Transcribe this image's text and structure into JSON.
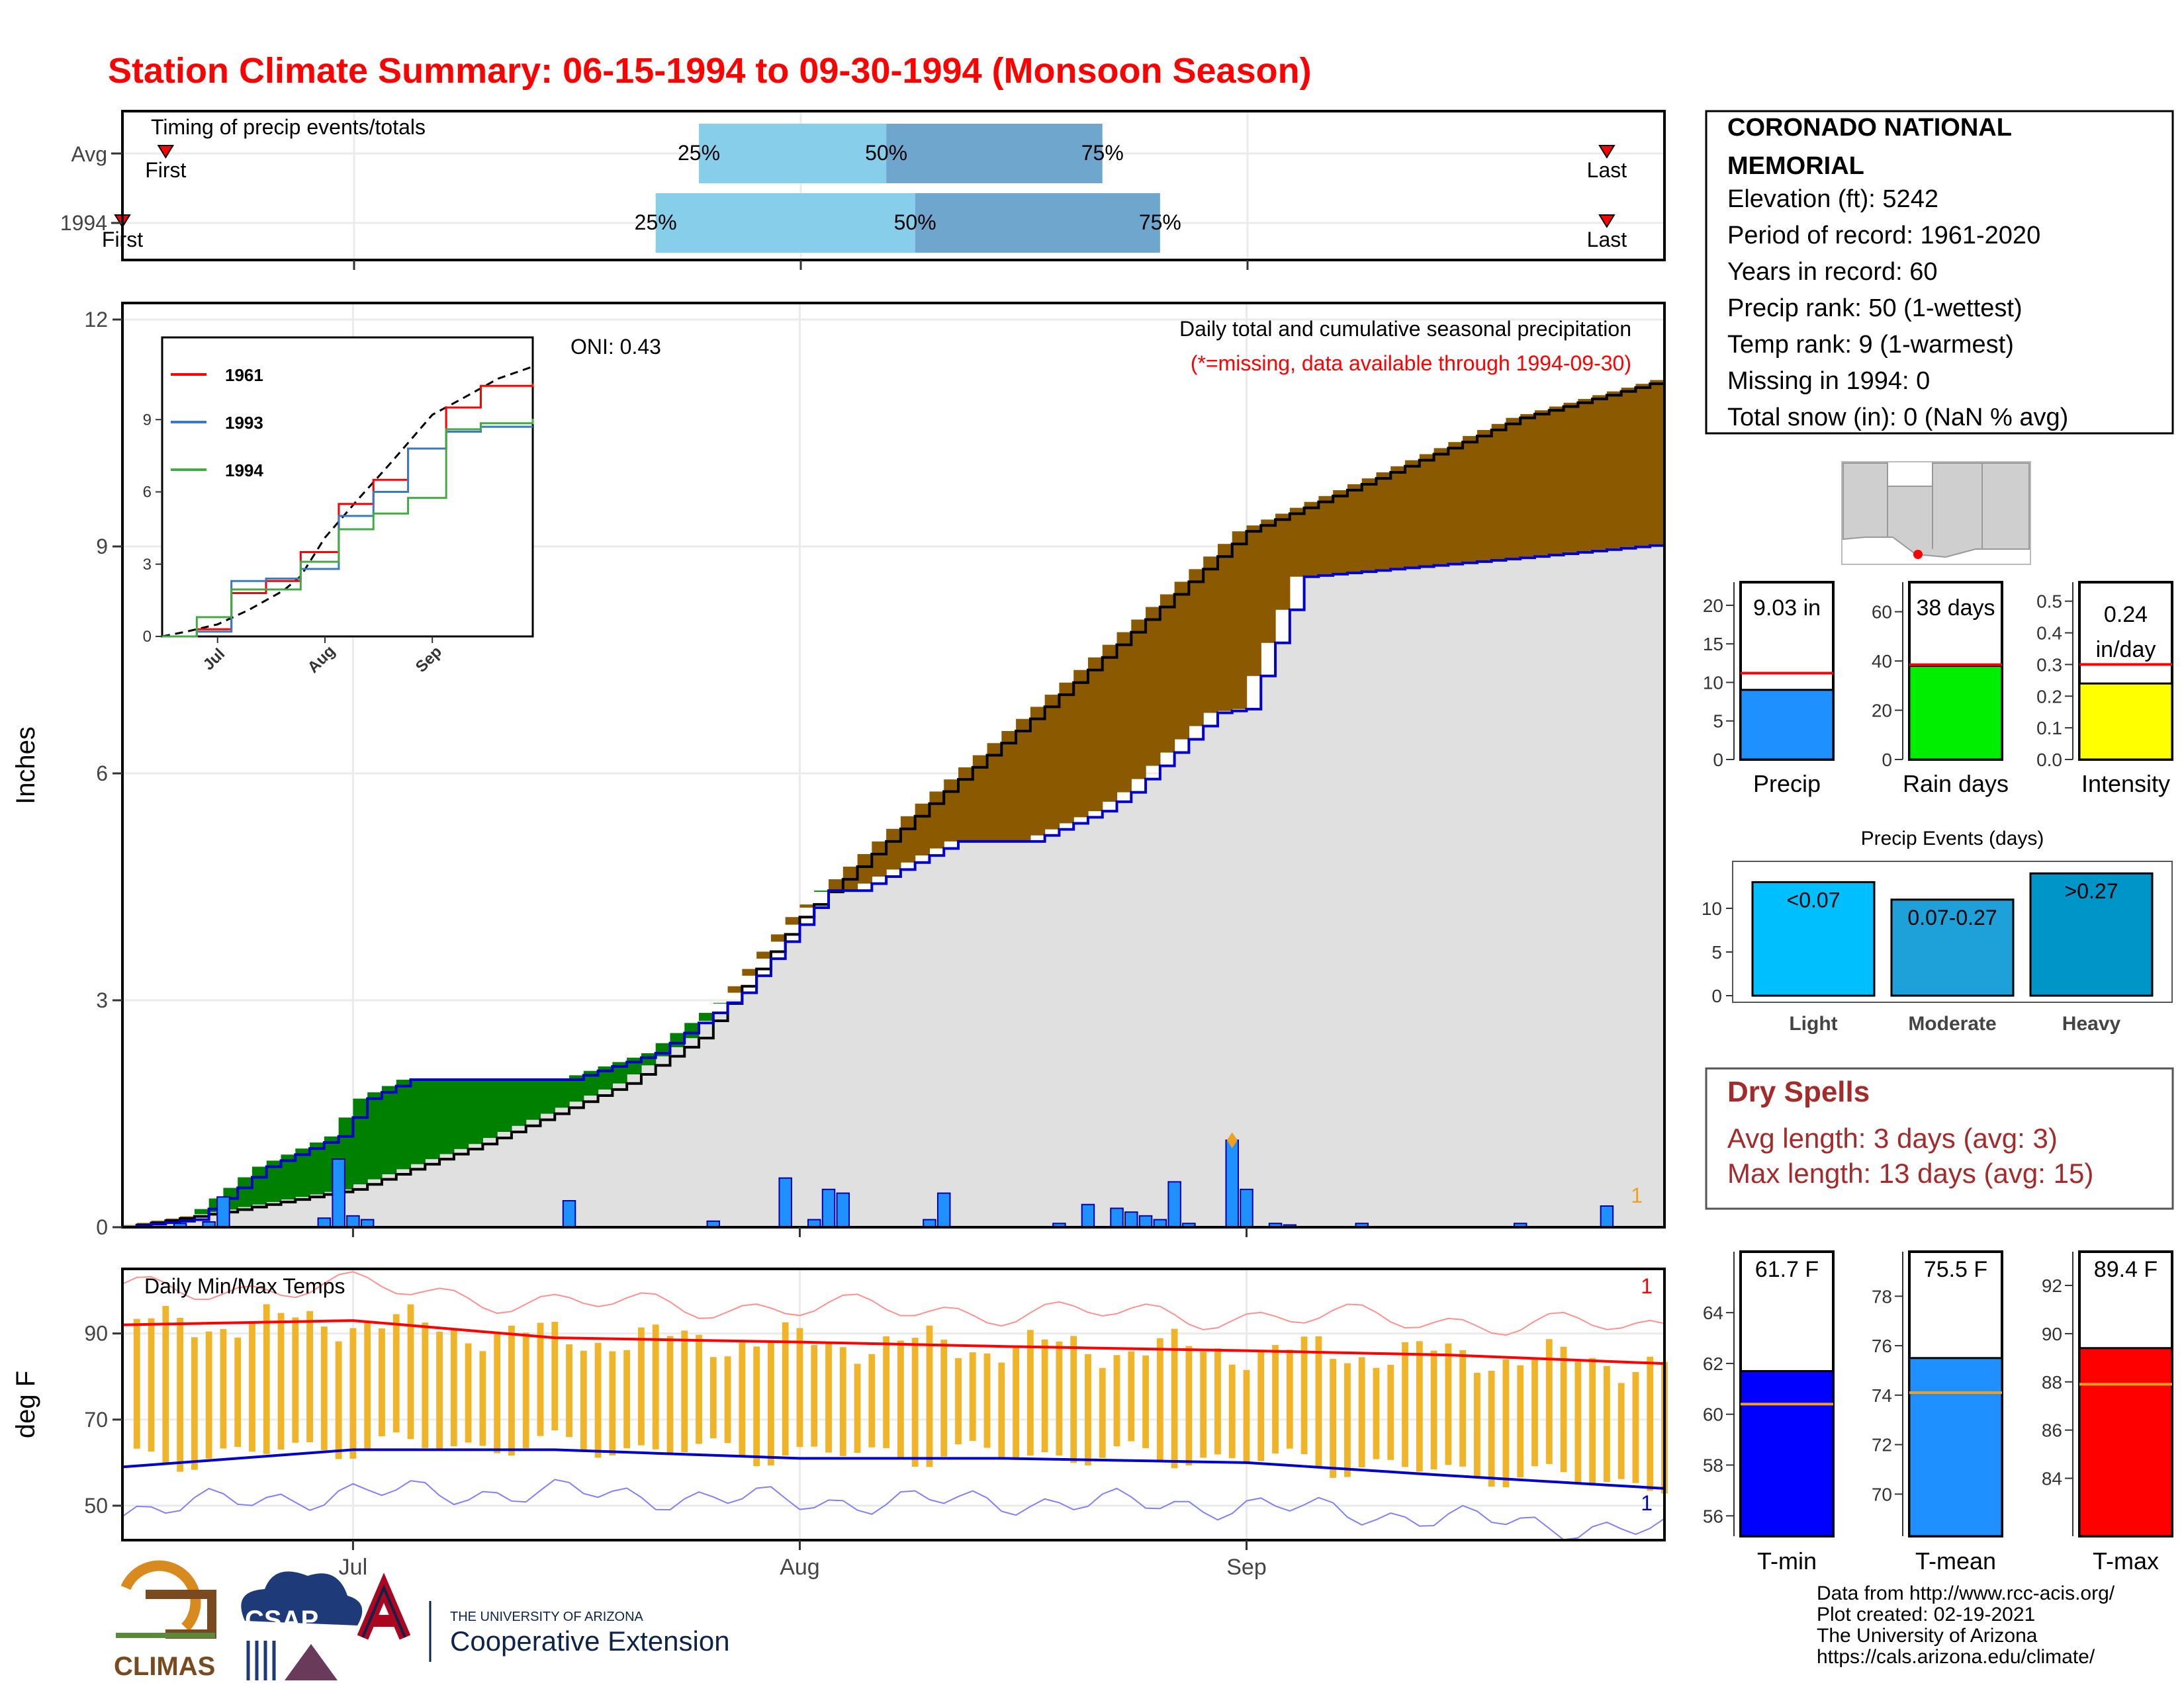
{
  "title": "Station Climate Summary: 06-15-1994 to 09-30-1994 (Monsoon Season)",
  "colors": {
    "title": "#ff0000",
    "light_quartile": "#87ceeb",
    "dark_quartile": "#6fa6cd",
    "deficit_fill": "#8b5a00",
    "surplus_fill": "#008000",
    "normal_fill": "#e0e0e0",
    "cumulative_line": "#000000",
    "current_line": "#0000cd",
    "daily_bar": "#1e90ff",
    "temp_bar": "#f0b429",
    "tmax_avg": "#ff0000",
    "tmin_avg": "#0000cd",
    "dry_spells": "#a52a2a"
  },
  "timing": {
    "label": "Timing of precip events/totals",
    "rows": [
      "Avg",
      "1994"
    ],
    "first_label": "First",
    "last_label": "Last",
    "q25": "25%",
    "q50": "50%",
    "q75": "75%"
  },
  "station": {
    "name_line1": "CORONADO NATIONAL",
    "name_line2": "MEMORIAL",
    "elevation": "Elevation (ft): 5242",
    "period": "Period of record: 1961-2020",
    "years": "Years in record: 60",
    "precip_rank": "Precip rank: 50 (1-wettest)",
    "temp_rank": "Temp rank: 9 (1-warmest)",
    "missing": "Missing in 1994: 0",
    "snow": "Total snow (in): 0 (NaN % avg)"
  },
  "main": {
    "ylabel": "Inches",
    "oni": "ONI: 0.43",
    "caption1": "Daily total and cumulative seasonal precipitation",
    "caption2": "(*=missing, data available through 1994-09-30)",
    "corner_label": "1",
    "yticks": [
      "0",
      "3",
      "6",
      "9",
      "12"
    ]
  },
  "inset": {
    "legend": [
      "1961",
      "1993",
      "1994"
    ],
    "yticks": [
      "0",
      "3",
      "6",
      "9"
    ],
    "xticks": [
      "Jul",
      "Aug",
      "Sep"
    ]
  },
  "summary_bars": {
    "precip": {
      "label": "Precip",
      "value_text": "9.03 in",
      "yticks": [
        "0",
        "5",
        "10",
        "15",
        "20"
      ]
    },
    "raindays": {
      "label": "Rain days",
      "value_text": "38 days",
      "yticks": [
        "0",
        "20",
        "40",
        "60"
      ]
    },
    "intensity": {
      "label": "Intensity",
      "value_text1": "0.24",
      "value_text2": "in/day",
      "yticks": [
        "0.0",
        "0.1",
        "0.2",
        "0.3",
        "0.4",
        "0.5"
      ]
    }
  },
  "events": {
    "title": "Precip Events (days)",
    "labels": [
      "Light",
      "Moderate",
      "Heavy"
    ],
    "bar_labels": [
      "<0.07",
      "0.07-0.27",
      ">0.27"
    ],
    "yticks": [
      "0",
      "5",
      "10"
    ]
  },
  "dry_spells": {
    "title": "Dry Spells",
    "avg": "Avg length: 3 days (avg: 3)",
    "max": "Max length: 13 days (avg: 15)"
  },
  "temps": {
    "title": "Daily Min/Max Temps",
    "ylabel": "deg F",
    "yticks": [
      "50",
      "70",
      "90"
    ],
    "xticks": [
      "Jul",
      "Aug",
      "Sep"
    ],
    "top_label": "1",
    "bottom_label": "1"
  },
  "temp_bars": {
    "tmin": {
      "label": "T-min",
      "value_text": "61.7 F",
      "yticks": [
        "56",
        "58",
        "60",
        "62",
        "64"
      ]
    },
    "tmean": {
      "label": "T-mean",
      "value_text": "75.5 F",
      "yticks": [
        "70",
        "72",
        "74",
        "76",
        "78"
      ]
    },
    "tmax": {
      "label": "T-max",
      "value_text": "89.4 F",
      "yticks": [
        "84",
        "86",
        "88",
        "90",
        "92"
      ]
    }
  },
  "footer": {
    "line1": "Data from http://www.rcc-acis.org/",
    "line2": "Plot created: 02-19-2021",
    "line3": "The University of Arizona",
    "line4": "https://cals.arizona.edu/climate/",
    "logo_climas": "CLIMAS",
    "logo_csap": "CSAP",
    "logo_ua_small": "THE UNIVERSITY OF ARIZONA",
    "logo_ua_big": "Cooperative Extension"
  },
  "chart_data": [
    {
      "type": "bar",
      "title": "Timing of precip events/totals",
      "categories": [
        "Avg",
        "1994"
      ],
      "series": [
        {
          "name": "First",
          "values": [
            "1994-06-18",
            "1994-06-15"
          ]
        },
        {
          "name": "25%",
          "values": [
            "1994-07-25",
            "1994-07-22"
          ]
        },
        {
          "name": "50%",
          "values": [
            "1994-08-07",
            "1994-08-09"
          ]
        },
        {
          "name": "75%",
          "values": [
            "1994-08-22",
            "1994-08-26"
          ]
        },
        {
          "name": "Last",
          "values": [
            "1994-09-26",
            "1994-09-26"
          ]
        }
      ]
    },
    {
      "type": "area",
      "title": "Daily total and cumulative seasonal precipitation",
      "ylabel": "Inches",
      "ylim": [
        0,
        12
      ],
      "x_range": [
        "1994-06-15",
        "1994-09-30"
      ],
      "series": [
        {
          "name": "avg_cumulative",
          "x": [
            "06-15",
            "06-22",
            "07-01",
            "07-10",
            "07-20",
            "07-25",
            "08-01",
            "08-10",
            "08-20",
            "09-01",
            "09-10",
            "09-20",
            "09-30"
          ],
          "values": [
            0,
            0.2,
            0.5,
            1.1,
            1.9,
            2.5,
            4.1,
            5.6,
            7.2,
            9.2,
            9.9,
            10.7,
            11.2
          ]
        },
        {
          "name": "1994 cumulative",
          "x": [
            "06-15",
            "06-20",
            "06-25",
            "06-30",
            "07-02",
            "07-05",
            "07-16",
            "07-22",
            "07-28",
            "08-03",
            "08-05",
            "08-12",
            "08-17",
            "08-22",
            "08-24",
            "08-30",
            "09-01",
            "09-05",
            "09-20",
            "09-30"
          ],
          "values": [
            0,
            0.1,
            0.8,
            1.2,
            1.7,
            1.95,
            1.95,
            2.3,
            3.1,
            4.45,
            4.45,
            5.1,
            5.1,
            5.5,
            5.75,
            6.8,
            6.85,
            8.6,
            8.85,
            9.03
          ]
        },
        {
          "name": "1994 daily",
          "x": [
            "06-19",
            "06-21",
            "06-22",
            "06-29",
            "06-30",
            "07-01",
            "07-02",
            "07-16",
            "07-26",
            "07-31",
            "08-02",
            "08-03",
            "08-04",
            "08-10",
            "08-11",
            "08-19",
            "08-21",
            "08-23",
            "08-24",
            "08-25",
            "08-26",
            "08-27",
            "08-28",
            "08-31",
            "09-01",
            "09-03",
            "09-04",
            "09-09",
            "09-20",
            "09-26"
          ],
          "values": [
            0.05,
            0.07,
            0.4,
            0.12,
            0.9,
            0.15,
            0.1,
            0.35,
            0.08,
            0.65,
            0.1,
            0.5,
            0.45,
            0.1,
            0.45,
            0.05,
            0.3,
            0.25,
            0.2,
            0.15,
            0.1,
            0.6,
            0.05,
            1.15,
            0.5,
            0.05,
            0.03,
            0.05,
            0.05,
            0.28
          ]
        }
      ]
    },
    {
      "type": "line",
      "title": "",
      "ylim": [
        0,
        12
      ],
      "x_range": [
        "1994-06-15",
        "1994-09-30"
      ],
      "series": [
        {
          "name": "1961",
          "x": [
            "06-15",
            "06-25",
            "07-05",
            "07-15",
            "07-25",
            "08-05",
            "08-15",
            "08-25",
            "09-05",
            "09-15",
            "09-30"
          ],
          "values": [
            0,
            0.3,
            1.8,
            2.3,
            3.5,
            5.5,
            6.5,
            7.8,
            9.5,
            10.4,
            10.5
          ]
        },
        {
          "name": "1993",
          "x": [
            "06-15",
            "06-25",
            "07-05",
            "07-15",
            "07-25",
            "08-05",
            "08-15",
            "08-25",
            "09-05",
            "09-15",
            "09-30"
          ],
          "values": [
            0,
            0.2,
            2.3,
            2.4,
            2.8,
            5.0,
            6.0,
            7.8,
            8.5,
            8.7,
            8.7
          ]
        },
        {
          "name": "1994",
          "x": [
            "06-15",
            "06-25",
            "07-05",
            "07-15",
            "07-25",
            "08-05",
            "08-15",
            "08-25",
            "09-05",
            "09-15",
            "09-30"
          ],
          "values": [
            0,
            0.8,
            1.95,
            1.95,
            3.1,
            4.45,
            5.1,
            5.75,
            8.6,
            8.85,
            9.03
          ]
        }
      ]
    },
    {
      "type": "bar",
      "title": "",
      "categories": [
        "Precip",
        "Rain days",
        "Intensity"
      ],
      "values": [
        9.03,
        38,
        0.24
      ],
      "normals": [
        11.2,
        38.5,
        0.3
      ]
    },
    {
      "type": "bar",
      "title": "Precip Events (days)",
      "categories": [
        "Light",
        "Moderate",
        "Heavy"
      ],
      "values": [
        13,
        11,
        14
      ],
      "ylim": [
        0,
        15
      ]
    },
    {
      "type": "line",
      "title": "Daily Min/Max Temps",
      "ylabel": "deg F",
      "ylim": [
        42,
        105
      ],
      "x_range": [
        "1994-06-15",
        "1994-09-30"
      ],
      "series": [
        {
          "name": "avg_tmax",
          "x": [
            "06-15",
            "07-01",
            "07-15",
            "08-01",
            "08-15",
            "09-01",
            "09-15",
            "09-30"
          ],
          "values": [
            92,
            93,
            89,
            88,
            87,
            86,
            85,
            83
          ]
        },
        {
          "name": "avg_tmin",
          "x": [
            "06-15",
            "07-01",
            "07-15",
            "08-01",
            "08-15",
            "09-01",
            "09-15",
            "09-30"
          ],
          "values": [
            59,
            63,
            63,
            61,
            61,
            60,
            57,
            54
          ]
        }
      ]
    },
    {
      "type": "bar",
      "title": "",
      "categories": [
        "T-min",
        "T-mean",
        "T-max"
      ],
      "values": [
        61.7,
        75.5,
        89.4
      ],
      "normals": [
        60.4,
        74.1,
        87.9
      ]
    }
  ]
}
